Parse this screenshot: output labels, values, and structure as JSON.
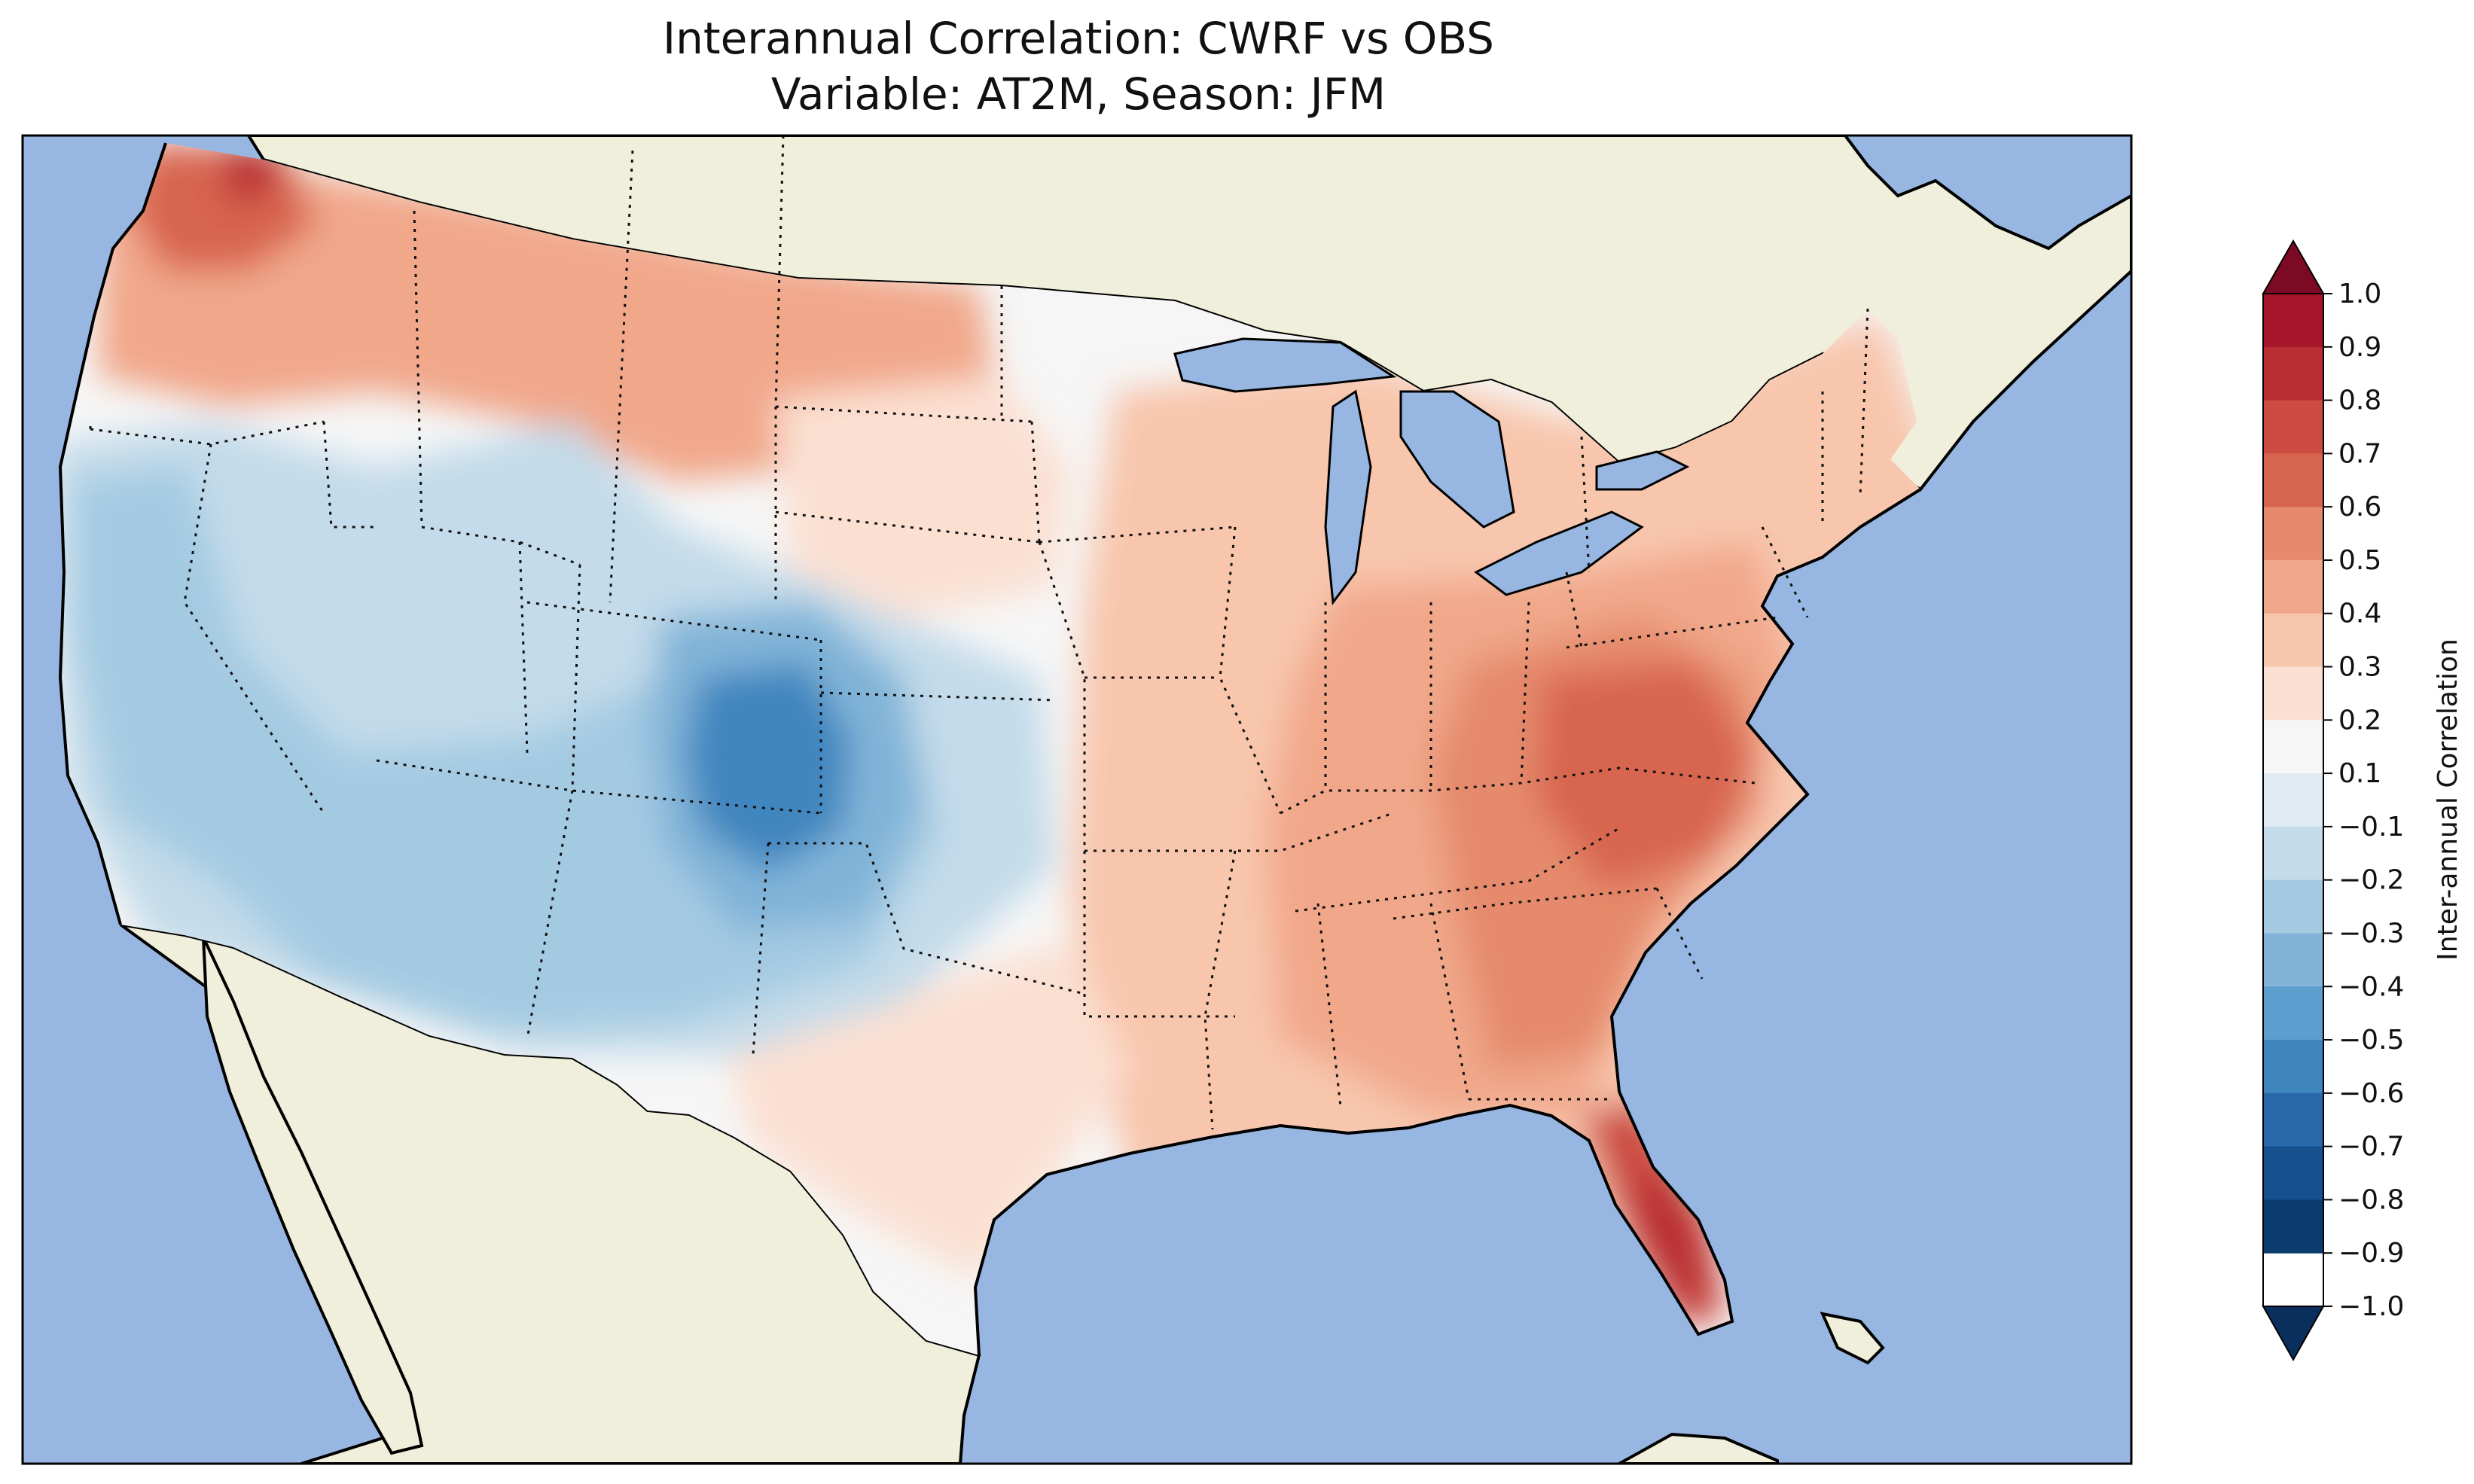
{
  "title": "Interannual Correlation: CWRF vs OBS",
  "subtitle": "Variable: AT2M, Season: JFM",
  "colors": {
    "ocean": "#97b6e1",
    "land": "#efefdb",
    "coast": "#000000"
  },
  "colorbar": {
    "label": "Inter-annual Correlation",
    "tick_labels": [
      "1.0",
      "0.9",
      "0.8",
      "0.7",
      "0.6",
      "0.5",
      "0.4",
      "0.3",
      "0.2",
      "0.1",
      "−0.1",
      "−0.2",
      "−0.3",
      "−0.4",
      "−0.5",
      "−0.6",
      "−0.7",
      "−0.8",
      "−0.9",
      "−1.0"
    ],
    "levels": [
      1.0,
      0.9,
      0.8,
      0.7,
      0.6,
      0.5,
      0.4,
      0.3,
      0.2,
      0.1,
      -0.1,
      -0.2,
      -0.3,
      -0.4,
      -0.5,
      -0.6,
      -0.7,
      -0.8,
      -0.9,
      -1.0
    ],
    "bin_colors": [
      "#a51429",
      "#b92e33",
      "#cc4b42",
      "#d8654f",
      "#e58a6c",
      "#f1a78a",
      "#f8c6ad",
      "#fbe0d2",
      "#f6f6f6",
      "#dfeaf2",
      "#c3dbea",
      "#a4cae2",
      "#81b4d8",
      "#5c9ecd",
      "#3f86bf",
      "#2968aa",
      "#16508f",
      "#0b3c70"
    ],
    "extend_top_color": "#7d0a24",
    "extend_bottom_color": "#0a2f5c"
  }
}
